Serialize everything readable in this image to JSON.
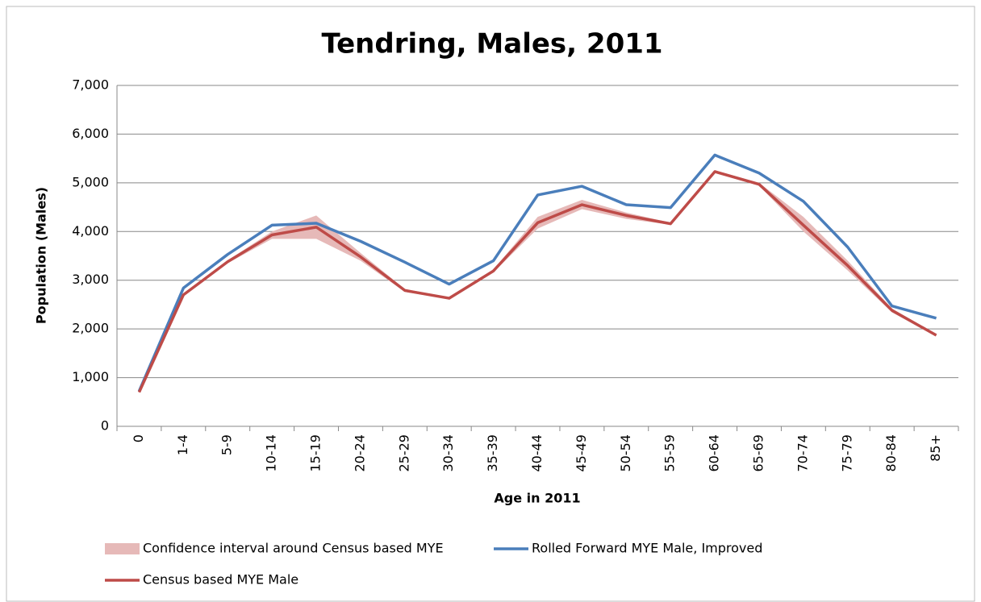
{
  "chart_data": {
    "type": "line",
    "title": "Tendring, Males, 2011",
    "x_label": "Age in 2011",
    "y_label": "Population (Males)",
    "categories": [
      "0",
      "1-4",
      "5-9",
      "10-14",
      "15-19",
      "20-24",
      "25-29",
      "30-34",
      "35-39",
      "40-44",
      "45-49",
      "50-54",
      "55-59",
      "60-64",
      "65-69",
      "70-74",
      "75-79",
      "80-84",
      "85+"
    ],
    "series": [
      {
        "name": "Confidence interval around Census based MYE",
        "color": "#e6b9b8",
        "kind": "band",
        "high": [
          710,
          2720,
          3410,
          4000,
          4330,
          3560,
          2820,
          2650,
          3220,
          4300,
          4650,
          4390,
          4180,
          5260,
          5000,
          4300,
          3400,
          2420,
          1890
        ],
        "low": [
          690,
          2680,
          3350,
          3850,
          3850,
          3400,
          2760,
          2610,
          3160,
          4060,
          4460,
          4260,
          4140,
          5200,
          4940,
          4000,
          3200,
          2340,
          1850
        ]
      },
      {
        "name": "Rolled Forward MYE Male, Improved",
        "color": "#4a7ebb",
        "kind": "line",
        "values": [
          720,
          2840,
          3530,
          4130,
          4170,
          3800,
          3370,
          2920,
          3400,
          4750,
          4930,
          4550,
          4490,
          5570,
          5200,
          4620,
          3680,
          2470,
          2220
        ]
      },
      {
        "name": "Census based MYE Male",
        "color": "#be4b48",
        "kind": "line",
        "values": [
          700,
          2700,
          3380,
          3930,
          4090,
          3480,
          2790,
          2630,
          3190,
          4180,
          4550,
          4330,
          4160,
          5230,
          4970,
          4130,
          3300,
          2380,
          1870
        ]
      }
    ],
    "ylim": [
      0,
      7000
    ],
    "yticks": [
      0,
      {
        "value": 1000,
        "label": "1,000"
      },
      {
        "value": 2000,
        "label": "2,000"
      },
      {
        "value": 3000,
        "label": "3,000"
      },
      {
        "value": 4000,
        "label": "4,000"
      },
      {
        "value": 5000,
        "label": "5,000"
      },
      {
        "value": 6000,
        "label": "6,000"
      },
      {
        "value": 7000,
        "label": "7,000"
      }
    ],
    "grid": true
  }
}
